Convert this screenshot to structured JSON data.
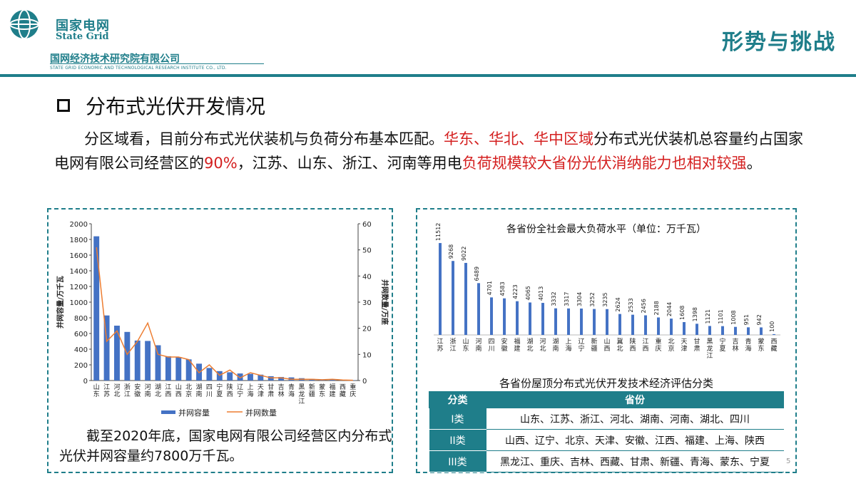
{
  "header": {
    "org_cn": "国家电网",
    "org_en": "State Grid",
    "institute_cn": "国网经济技术研究院有限公司",
    "institute_en": "STATE GRID ECONOMIC AND TECHNOLOGICAL RESEARCH INSTITUTE CO., LTD.",
    "section": "形势与挑战",
    "accent_color": "#1f7e8a"
  },
  "slide": {
    "title": "分布式光伏开发情况",
    "para_1": "分区域看，目前分布式光伏装机与负荷分布基本匹配。",
    "para_2": "华东、华北、华中区域",
    "para_3": "分布式光伏装机总容量约占国家电网有限公司经营区的",
    "para_4": "90%",
    "para_5": "，江苏、山东、浙江、河南等用电",
    "para_6": "负荷规模较大省份光伏消纳能力也相对较强",
    "para_7": "。",
    "highlight_color": "#d42020",
    "left_caption": "截至2020年底，国家电网有限公司经营区内分布式光伏并网容量约7800万千瓦。",
    "page_number": "5"
  },
  "chart_data": [
    {
      "type": "bar",
      "title": "",
      "categories": [
        "山东",
        "江苏",
        "河北",
        "浙江",
        "安徽",
        "河南",
        "湖北",
        "江西",
        "山西",
        "北京",
        "湖南",
        "四川",
        "宁夏",
        "陕西",
        "辽宁",
        "上海",
        "天津",
        "甘肃",
        "吉林",
        "青海",
        "黑龙江",
        "新疆",
        "蒙东",
        "福建",
        "西藏",
        "重庆"
      ],
      "category_labels": [
        [
          "山",
          "东"
        ],
        [
          "江",
          "苏"
        ],
        [
          "河",
          "北"
        ],
        [
          "浙",
          "江"
        ],
        [
          "安",
          "徽"
        ],
        [
          "河",
          "南"
        ],
        [
          "湖",
          "北"
        ],
        [
          "江",
          "西"
        ],
        [
          "山",
          "西"
        ],
        [
          "北",
          "京"
        ],
        [
          "湖",
          "南"
        ],
        [
          "四",
          "川"
        ],
        [
          "宁",
          "夏"
        ],
        [
          "陕",
          "西"
        ],
        [
          "辽",
          "宁"
        ],
        [
          "上",
          "海"
        ],
        [
          "天",
          "津"
        ],
        [
          "甘",
          "肃"
        ],
        [
          "吉",
          "林"
        ],
        [
          "青",
          "海"
        ],
        [
          "黑",
          "龙",
          "江"
        ],
        [
          "新",
          "疆"
        ],
        [
          "蒙",
          "东"
        ],
        [
          "福",
          "建"
        ],
        [
          "西",
          "藏"
        ],
        [
          "重",
          "庆"
        ]
      ],
      "series": [
        {
          "name": "并网容量",
          "axis": "left",
          "render": "bar",
          "color": "#4472c4",
          "values": [
            1840,
            830,
            700,
            620,
            510,
            505,
            450,
            310,
            300,
            270,
            215,
            160,
            120,
            105,
            90,
            85,
            75,
            55,
            45,
            40,
            30,
            20,
            12,
            10,
            5,
            3
          ]
        },
        {
          "name": "并网数量",
          "axis": "right",
          "render": "line",
          "color": "#ed7d31",
          "values": [
            51,
            15,
            19,
            10,
            15,
            22,
            10,
            9,
            9,
            8,
            3,
            6,
            2,
            4,
            1,
            3,
            2,
            1,
            1,
            0.5,
            0.5,
            0.5,
            0.3,
            0.5,
            0.2,
            0.1
          ]
        }
      ],
      "ylabel_left": "并网容量/万千瓦",
      "ylabel_right": "并网数量/万座",
      "ylim_left": [
        0,
        2000
      ],
      "yticks_left": [
        0,
        200,
        400,
        600,
        800,
        1000,
        1200,
        1400,
        1600,
        1800,
        2000
      ],
      "ylim_right": [
        0,
        60
      ],
      "yticks_right": [
        0,
        10,
        20,
        30,
        40,
        50,
        60
      ],
      "legend": {
        "position": "bottom"
      },
      "grid": false
    },
    {
      "type": "bar",
      "title": "各省份全社会最大负荷水平（单位：万千瓦）",
      "categories": [
        "江苏",
        "浙江",
        "山东",
        "河南",
        "四川",
        "安徽",
        "福建",
        "湖北",
        "河北",
        "湖南",
        "上海",
        "辽宁",
        "新疆",
        "山西",
        "冀北",
        "陕西",
        "江西",
        "重庆",
        "北京",
        "天津",
        "甘肃",
        "黑龙江",
        "宁夏",
        "吉林",
        "青海",
        "蒙东",
        "西藏"
      ],
      "category_labels": [
        [
          "江",
          "苏"
        ],
        [
          "浙",
          "江"
        ],
        [
          "山",
          "东"
        ],
        [
          "河",
          "南"
        ],
        [
          "四",
          "川"
        ],
        [
          "安",
          "徽"
        ],
        [
          "福",
          "建"
        ],
        [
          "湖",
          "北"
        ],
        [
          "河",
          "北"
        ],
        [
          "湖",
          "南"
        ],
        [
          "上",
          "海"
        ],
        [
          "辽",
          "宁"
        ],
        [
          "新",
          "疆"
        ],
        [
          "山",
          "西"
        ],
        [
          "冀",
          "北"
        ],
        [
          "陕",
          "西"
        ],
        [
          "江",
          "西"
        ],
        [
          "重",
          "庆"
        ],
        [
          "北",
          "京"
        ],
        [
          "天",
          "津"
        ],
        [
          "甘",
          "肃"
        ],
        [
          "黑",
          "龙",
          "江"
        ],
        [
          "宁",
          "夏"
        ],
        [
          "吉",
          "林"
        ],
        [
          "青",
          "海"
        ],
        [
          "蒙",
          "东"
        ],
        [
          "西",
          "藏"
        ]
      ],
      "values": [
        11512,
        9268,
        9022,
        6489,
        4701,
        4583,
        4223,
        4065,
        4013,
        3332,
        3317,
        3304,
        3252,
        3235,
        2624,
        2533,
        2456,
        2188,
        2044,
        1608,
        1398,
        1121,
        1101,
        1008,
        951,
        942,
        100
      ],
      "value_labels": [
        "11512",
        "9268",
        "9022",
        "6489",
        "4701",
        "4583",
        "4223",
        "4065",
        "4013",
        "3332",
        "3317",
        "3304",
        "3252",
        "3235",
        "2624",
        "2533",
        "2456",
        "2188",
        "2044",
        "1608",
        "1398",
        "1121",
        "1101",
        "1008",
        "951",
        "942",
        "100"
      ],
      "color": "#4472c4",
      "ylim": [
        0,
        12500
      ],
      "grid": false
    }
  ],
  "classification": {
    "title": "各省份屋顶分布式光伏开发技术经济评估分类",
    "headers": [
      "分类",
      "省份"
    ],
    "rows": [
      {
        "category": "I类",
        "provinces": "山东、江苏、浙江、河北、湖南、河南、湖北、四川"
      },
      {
        "category": "II类",
        "provinces": "山西、辽宁、北京、天津、安徽、江西、福建、上海、陕西"
      },
      {
        "category": "III类",
        "provinces": "黑龙江、重庆、吉林、西藏、甘肃、新疆、青海、蒙东、宁夏"
      }
    ]
  }
}
